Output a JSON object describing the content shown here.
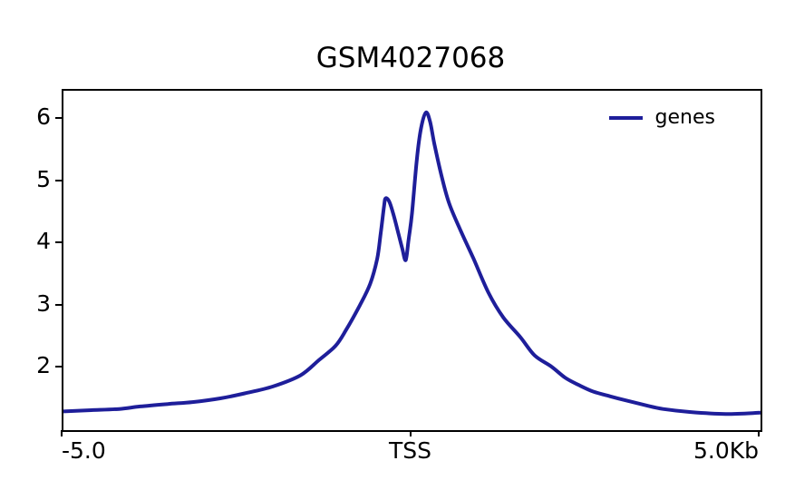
{
  "title": "GSM4027068",
  "chart_data": {
    "type": "line",
    "title": "GSM4027068",
    "xlabel": "",
    "ylabel": "",
    "x_unit": "Kb",
    "xlim": [
      -5,
      5
    ],
    "ylim": [
      1.0,
      6.45
    ],
    "grid": false,
    "legend": {
      "position": "upper-right",
      "frame": false
    },
    "xticks": [
      {
        "pos": -5,
        "label": "-5.0",
        "align": "left"
      },
      {
        "pos": 0,
        "label": "TSS",
        "align": "center"
      },
      {
        "pos": 5,
        "label": "5.0Kb",
        "align": "right"
      }
    ],
    "yticks": [
      2,
      3,
      4,
      5,
      6
    ],
    "series": [
      {
        "name": "genes",
        "color": "#1e1e9a",
        "x": [
          -5.0,
          -4.6,
          -4.2,
          -3.9,
          -3.5,
          -3.15,
          -2.75,
          -2.4,
          -2.0,
          -1.6,
          -1.33,
          -1.1,
          -0.95,
          -0.75,
          -0.6,
          -0.5,
          -0.45,
          -0.4,
          -0.38,
          -0.33,
          -0.27,
          -0.2,
          -0.14,
          -0.09,
          -0.05,
          0.0,
          0.07,
          0.13,
          0.2,
          0.26,
          0.32,
          0.42,
          0.53,
          0.7,
          0.88,
          1.1,
          1.31,
          1.55,
          1.76,
          2.0,
          2.2,
          2.4,
          2.6,
          2.85,
          3.06,
          3.35,
          3.6,
          4.0,
          4.5,
          5.0
        ],
        "y": [
          1.3,
          1.32,
          1.34,
          1.38,
          1.42,
          1.45,
          1.51,
          1.59,
          1.7,
          1.88,
          2.13,
          2.35,
          2.6,
          3.0,
          3.35,
          3.75,
          4.15,
          4.6,
          4.72,
          4.68,
          4.48,
          4.18,
          3.92,
          3.73,
          4.05,
          4.48,
          5.35,
          5.85,
          6.1,
          5.95,
          5.6,
          5.1,
          4.65,
          4.2,
          3.76,
          3.2,
          2.81,
          2.5,
          2.2,
          2.02,
          1.84,
          1.72,
          1.62,
          1.54,
          1.48,
          1.4,
          1.34,
          1.29,
          1.26,
          1.28
        ]
      }
    ]
  }
}
